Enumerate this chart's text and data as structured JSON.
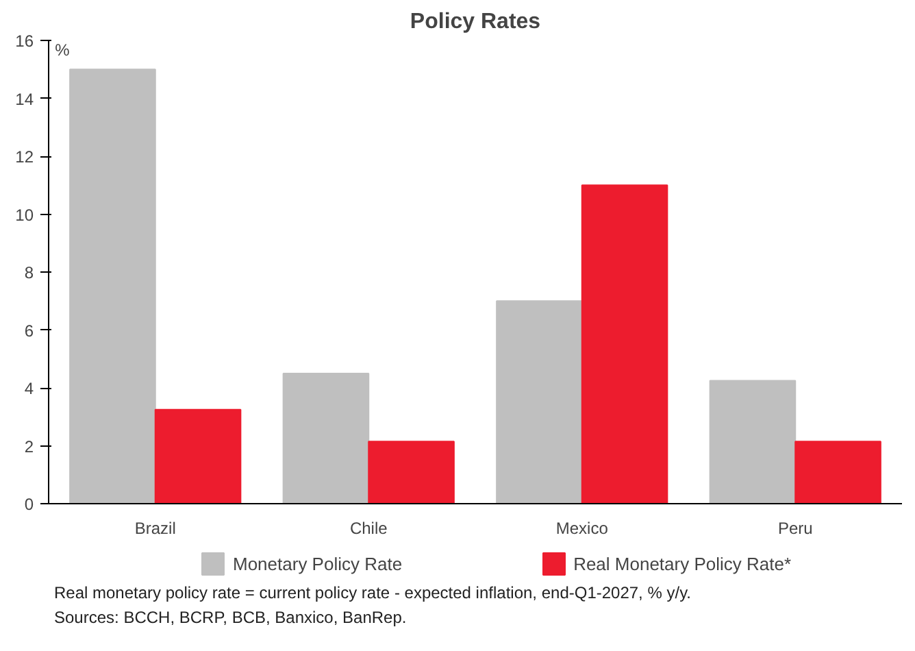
{
  "chart_data": {
    "type": "bar",
    "title": "Policy Rates",
    "ylabel": "%",
    "categories": [
      "Brazil",
      "Chile",
      "Mexico",
      "Peru"
    ],
    "series": [
      {
        "name": "Monetary Policy Rate",
        "color": "#bfbfbf",
        "values": [
          15,
          4.5,
          7,
          4.25
        ]
      },
      {
        "name": "Real Monetary Policy Rate*",
        "color": "#ed1c2e",
        "values": [
          3.25,
          2.15,
          11,
          2.15
        ]
      }
    ],
    "ylim": [
      0,
      16
    ],
    "yticks": [
      0,
      2,
      4,
      6,
      8,
      10,
      12,
      14,
      16
    ],
    "grid": false,
    "legend": "bottom",
    "annotations": [
      "Real monetary policy rate = current policy rate - expected inflation, end-Q1-2027, % y/y.",
      "Sources: BCCH, BCRP, BCB, Banxico, BanRep."
    ]
  }
}
